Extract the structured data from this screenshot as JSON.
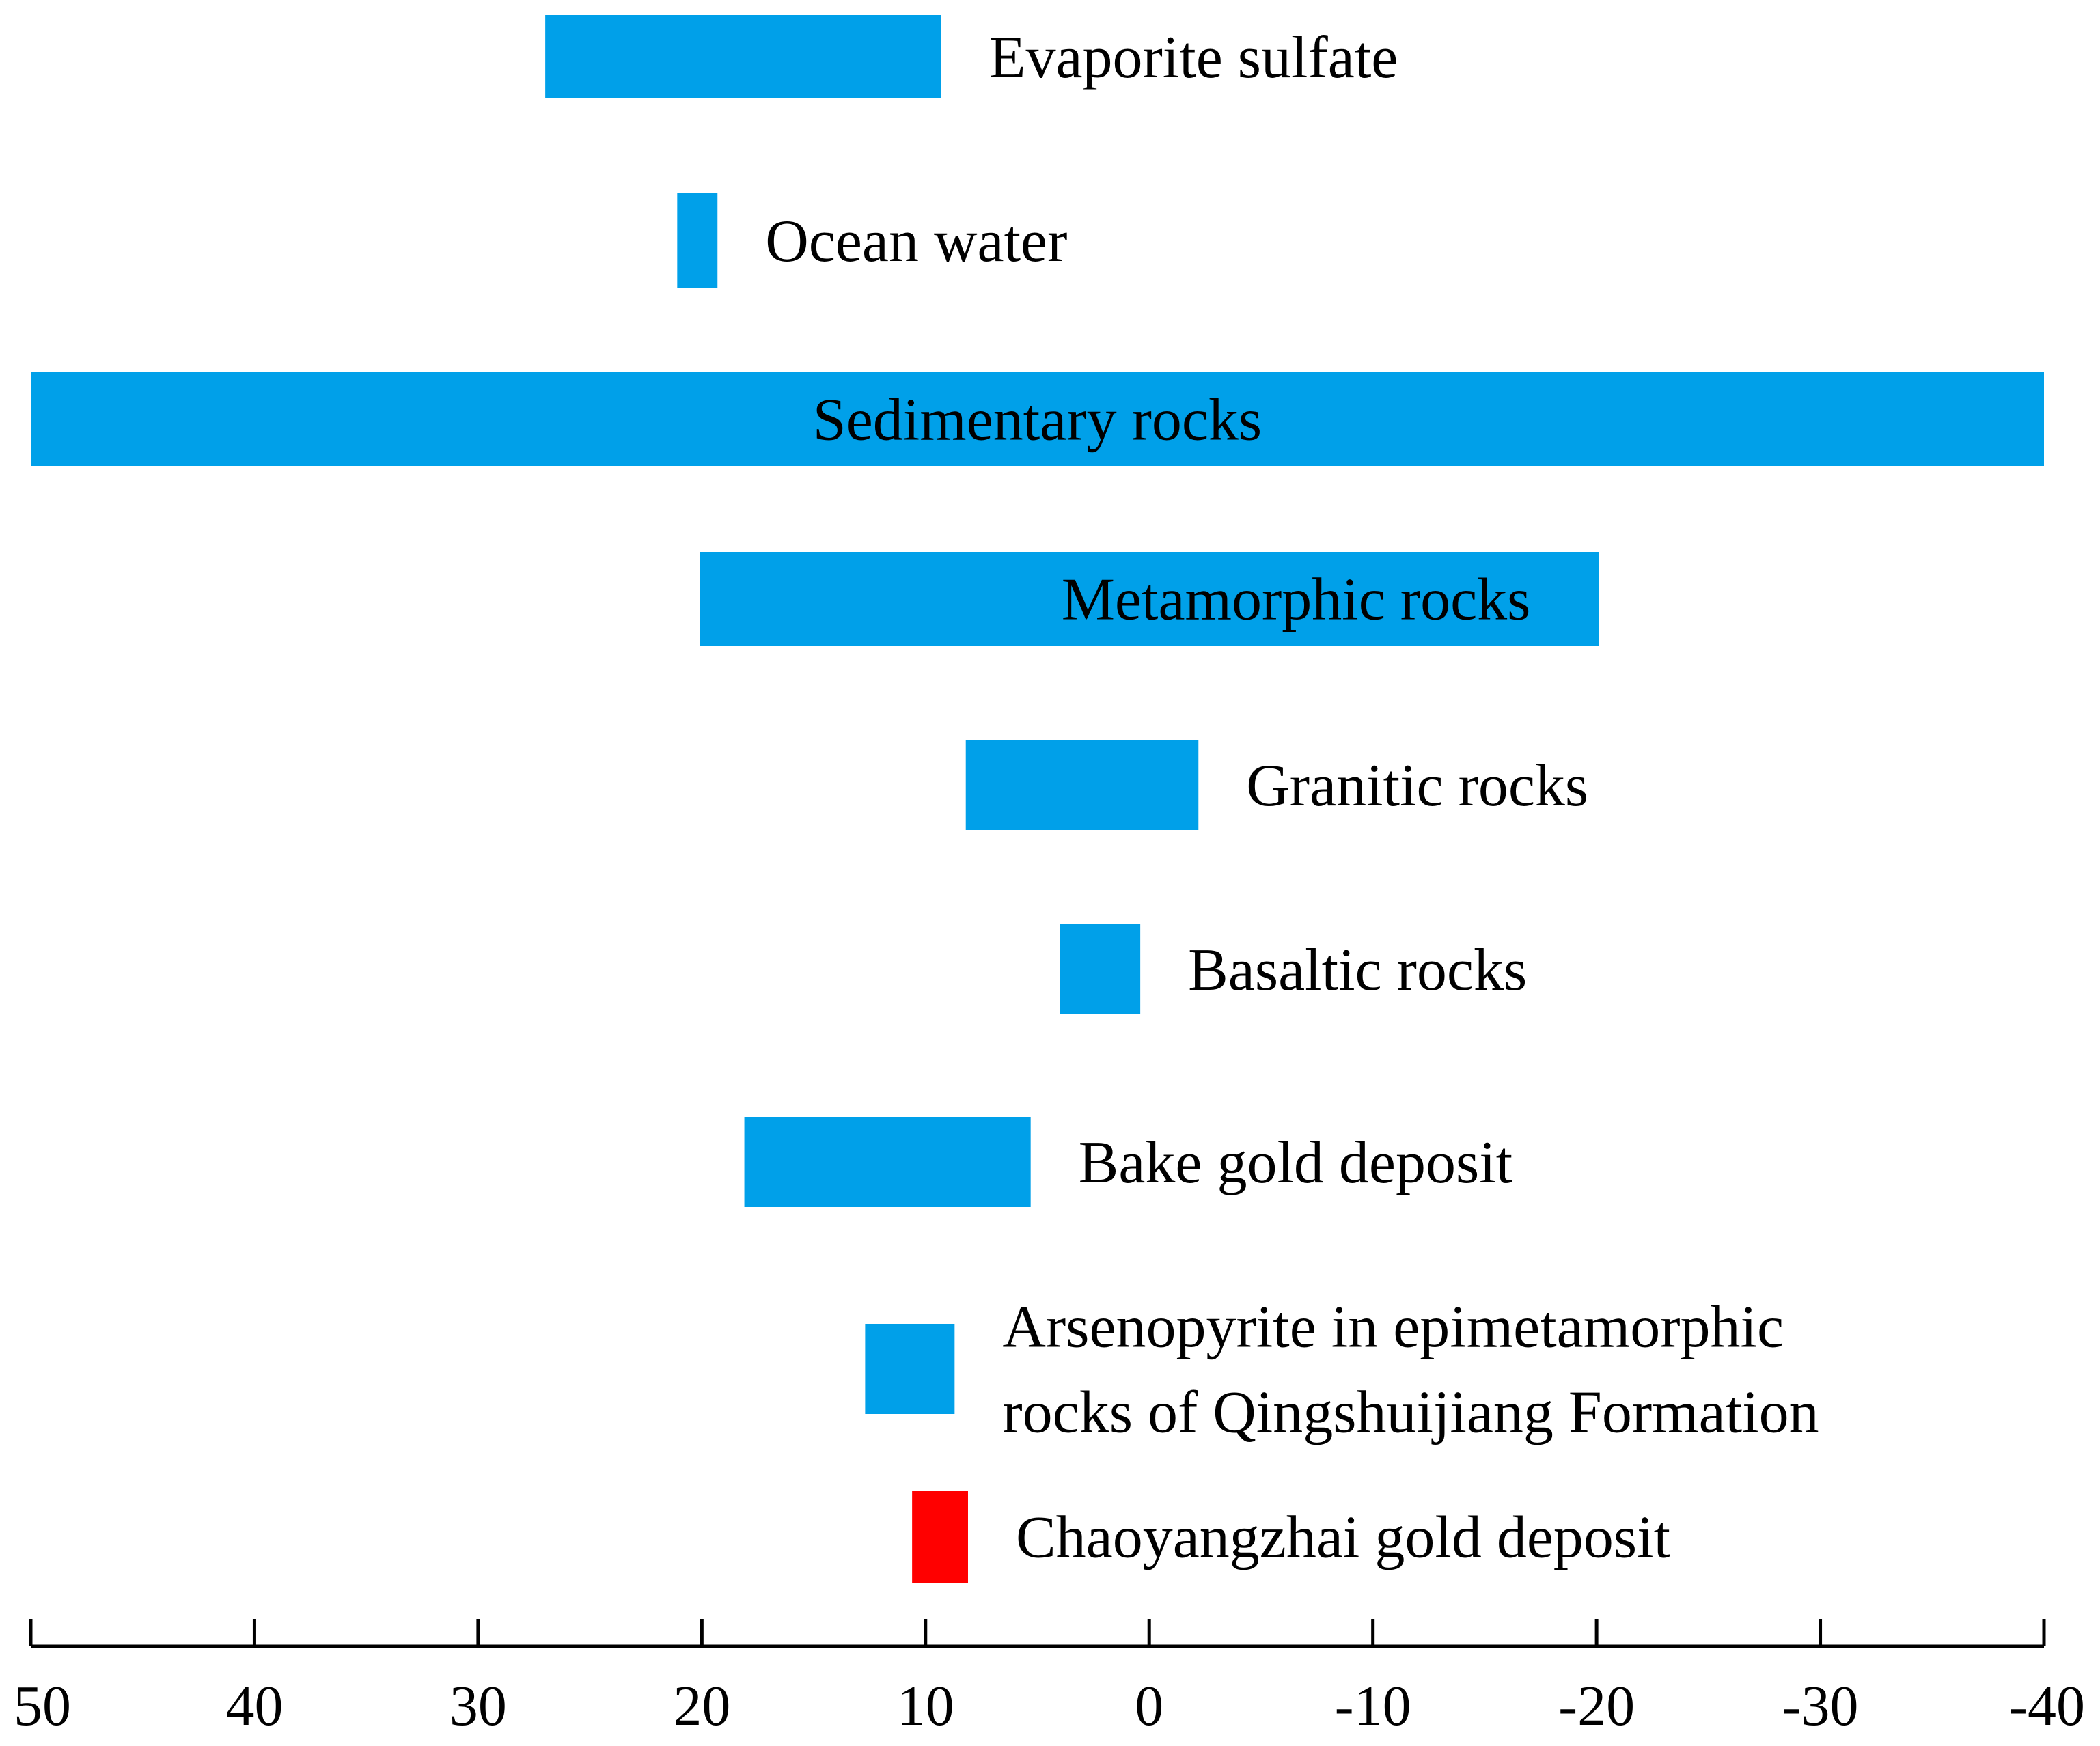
{
  "chart_data": {
    "type": "bar",
    "orientation": "horizontal-range",
    "xlim": [
      50,
      -40
    ],
    "x_reversed": true,
    "ticks": [
      50,
      40,
      30,
      20,
      10,
      0,
      -10,
      -20,
      -30,
      -40
    ],
    "tick_labels": [
      "50",
      "40",
      "30",
      "20",
      "10",
      "0",
      "-10",
      "-20",
      "-30",
      "-40"
    ],
    "grid": false,
    "bars": [
      {
        "lines": [
          "Evaporite sulfate"
        ],
        "start": 27.0,
        "end": 9.3,
        "color": "#00A0E9",
        "label_position": "right"
      },
      {
        "lines": [
          "Ocean water"
        ],
        "start": 21.1,
        "end": 19.3,
        "color": "#00A0E9",
        "label_position": "right"
      },
      {
        "lines": [
          "Sedimentary rocks"
        ],
        "start": 50.0,
        "end": -40.0,
        "color": "#00A0E9",
        "label_position": "inside"
      },
      {
        "lines": [
          "Metamorphic rocks"
        ],
        "start": 20.1,
        "end": -20.1,
        "color": "#00A0E9",
        "label_position": "inside-right"
      },
      {
        "lines": [
          "Granitic rocks"
        ],
        "start": 8.2,
        "end": -2.2,
        "color": "#00A0E9",
        "label_position": "right"
      },
      {
        "lines": [
          "Basaltic rocks"
        ],
        "start": 4.0,
        "end": 0.4,
        "color": "#00A0E9",
        "label_position": "right"
      },
      {
        "lines": [
          "Bake gold deposit"
        ],
        "start": 18.1,
        "end": 5.3,
        "color": "#00A0E9",
        "label_position": "right"
      },
      {
        "lines": [
          "Arsenopyrite in epimetamorphic",
          "rocks of Qingshuijiang Formation"
        ],
        "start": 12.7,
        "end": 8.7,
        "color": "#00A0E9",
        "label_position": "right"
      },
      {
        "lines": [
          "Chaoyangzhai gold deposit"
        ],
        "start": 10.6,
        "end": 8.1,
        "color": "#FF0000",
        "label_position": "right"
      }
    ]
  }
}
